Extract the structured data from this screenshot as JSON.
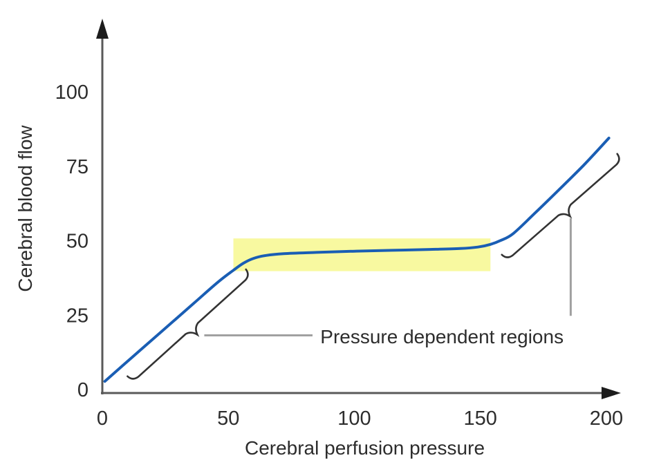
{
  "page": {
    "background": "#ffffff"
  },
  "chart_data": {
    "type": "line",
    "title": "",
    "xlabel": "Cerebral perfusion pressure",
    "ylabel": "Cerebral blood flow",
    "xlim": [
      0,
      200
    ],
    "ylim": [
      0,
      100
    ],
    "xticks": [
      "0",
      "50",
      "100",
      "150",
      "200"
    ],
    "xtick_values": [
      0,
      50,
      100,
      150,
      200
    ],
    "yticks": [
      "0",
      "25",
      "50",
      "75",
      "100"
    ],
    "ytick_values": [
      0,
      25,
      50,
      75,
      100
    ],
    "grid": false,
    "legend": null,
    "series": [
      {
        "name": "cerebral-autoregulation-curve",
        "color": "#1a5eb4",
        "points": [
          [
            1,
            3
          ],
          [
            12,
            11.2
          ],
          [
            24,
            20.1
          ],
          [
            36,
            29
          ],
          [
            46,
            36.4
          ],
          [
            52,
            40.3
          ],
          [
            56,
            42.7
          ],
          [
            60,
            44.3
          ],
          [
            65,
            45.3
          ],
          [
            72,
            45.9
          ],
          [
            85,
            46.3
          ],
          [
            100,
            46.7
          ],
          [
            115,
            47
          ],
          [
            130,
            47.3
          ],
          [
            142,
            47.6
          ],
          [
            149,
            48.1
          ],
          [
            154,
            49
          ],
          [
            158,
            50.3
          ],
          [
            163,
            52.6
          ],
          [
            172,
            59.8
          ],
          [
            181,
            67.2
          ],
          [
            191,
            75.6
          ],
          [
            201,
            84.7
          ]
        ]
      }
    ],
    "highlight_band": {
      "name": "autoregulation-plateau-highlight",
      "color": "#f8f9a0",
      "x1": 52,
      "x2": 154,
      "y1": 40,
      "y2": 51
    },
    "annotations": {
      "label": "Pressure dependent regions",
      "label_anchor_xy": [
        86.5,
        18
      ],
      "braces": [
        {
          "name": "lower-pressure-dependent-brace",
          "from_xy": [
            12,
            2.8
          ],
          "to_xy": [
            59,
            38.7
          ],
          "leader": {
            "type": "horizontal",
            "to_x": 83.4
          }
        },
        {
          "name": "upper-pressure-dependent-brace",
          "from_xy": [
            160.5,
            43.6
          ],
          "to_xy": [
            206.3,
            77.5
          ],
          "leader": {
            "type": "vertical",
            "to_y": 25
          }
        }
      ]
    },
    "styles": {
      "axis_color": "#595959",
      "arrow_color": "#1c1c1c",
      "text_color": "#2d2d2d",
      "curve_color": "#1a5eb4",
      "brace_color": "#333333",
      "leader_color": "#a0a0a0",
      "highlight_color": "#f8f9a0"
    }
  }
}
